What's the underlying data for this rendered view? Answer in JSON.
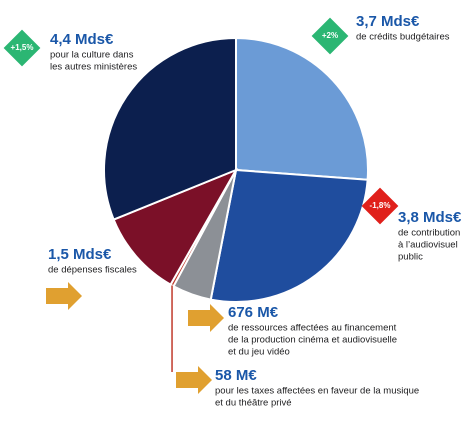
{
  "chart_data": {
    "type": "pie",
    "categories": [
      [
        "de crédits budgétaires"
      ],
      [
        "de contribution",
        "à l’audiovisuel",
        "public"
      ],
      [
        "de ressources affectées au financement",
        "de la production cinéma et audiovisuelle",
        "et du jeu vidéo"
      ],
      [
        "pour les taxes affectées en faveur de la musique",
        "et du théâtre privé"
      ],
      [
        "de dépenses fiscales"
      ],
      [
        "pour la culture dans",
        "les autres ministères"
      ]
    ],
    "values": [
      3700,
      3800,
      676,
      58,
      1500,
      4400
    ],
    "value_labels": [
      "3,7 Mds€",
      "3,8 Mds€",
      "676 M€",
      "58 M€",
      "1,5 Mds€",
      "4,4 Mds€"
    ],
    "changes": [
      "+2%",
      "-1,8%",
      null,
      null,
      null,
      "+1,5%"
    ],
    "colors": [
      "#6b9bd6",
      "#1f4d9e",
      "#8c9096",
      "#c0392b",
      "#7b1028",
      "#0c1f4e"
    ]
  }
}
